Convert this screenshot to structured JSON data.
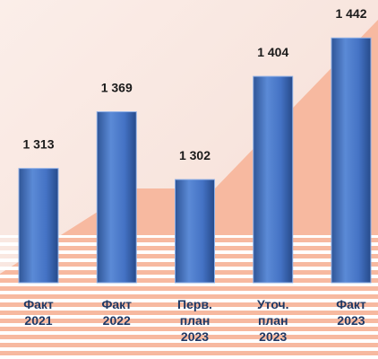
{
  "chart_data": {
    "type": "bar",
    "categories": [
      "Факт 2021",
      "Факт 2022",
      "Перв. план 2023",
      "Уточ. план 2023",
      "Факт 2023"
    ],
    "values": [
      1313,
      1369,
      1302,
      1404,
      1442
    ],
    "value_labels": [
      "1 313",
      "1 369",
      "1 302",
      "1 404",
      "1 442"
    ],
    "color": "#4a78c0",
    "ylim": [
      1200,
      1460
    ]
  }
}
